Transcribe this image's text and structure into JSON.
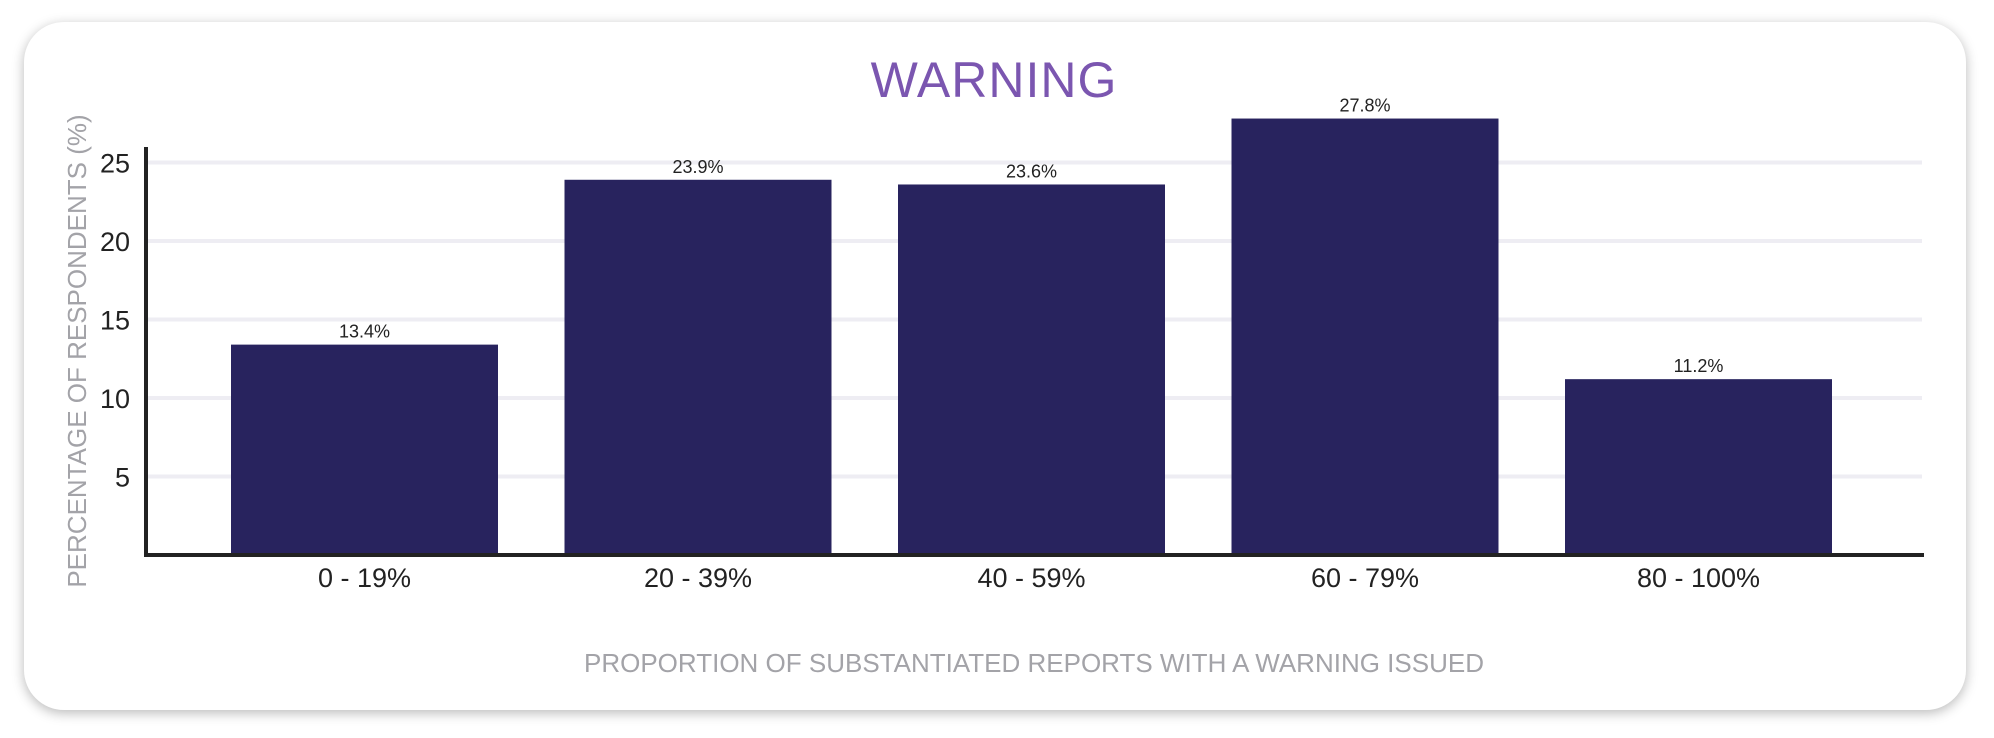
{
  "chart_data": {
    "type": "bar",
    "title": "WARNING",
    "xlabel": "PROPORTION OF SUBSTANTIATED REPORTS WITH A WARNING ISSUED",
    "ylabel": "PERCENTAGE OF RESPONDENTS (%)",
    "categories": [
      "0 - 19%",
      "20 - 39%",
      "40 - 59%",
      "60 - 79%",
      "80 - 100%"
    ],
    "values": [
      13.4,
      23.9,
      23.6,
      27.8,
      11.2
    ],
    "data_labels": [
      "13.4%",
      "23.9%",
      "23.6%",
      "27.8%",
      "11.2%"
    ],
    "yticks": [
      5,
      10,
      15,
      20,
      25
    ],
    "ylim": [
      0,
      25.6
    ],
    "grid": true,
    "bar_color": "#28235e",
    "title_color": "#7b56b0"
  }
}
